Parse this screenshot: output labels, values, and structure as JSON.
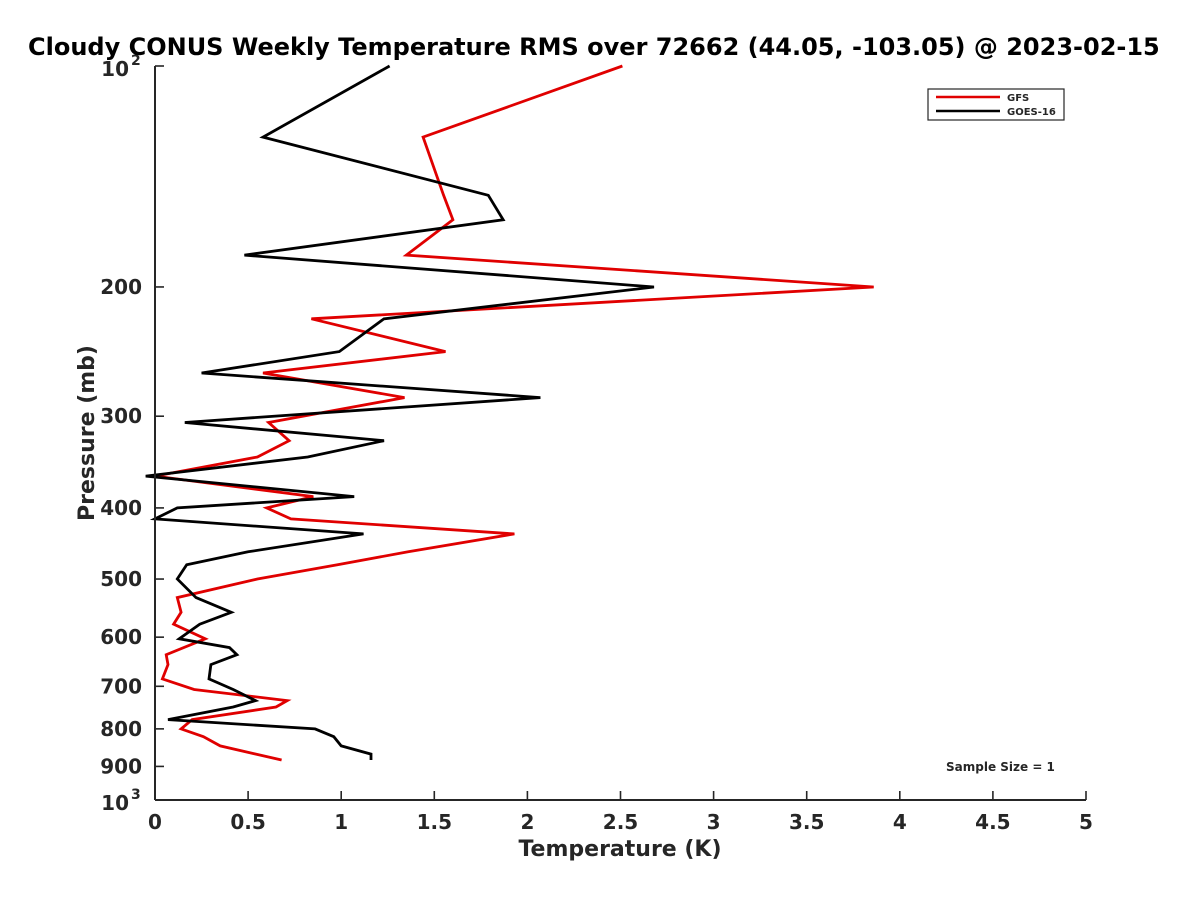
{
  "chart_data": {
    "type": "line",
    "title": "Cloudy CONUS Weekly Temperature RMS over 72662 (44.05, -103.05) @ 2023-02-15",
    "xlabel": "Temperature (K)",
    "ylabel": "Pressure (mb)",
    "xlim": [
      0,
      5
    ],
    "ylim": [
      100,
      1000
    ],
    "yscale": "log",
    "y_reversed": true,
    "xticks": [
      "0",
      "0.5",
      "1",
      "1.5",
      "2",
      "2.5",
      "3",
      "3.5",
      "4",
      "4.5",
      "5"
    ],
    "yticks": [
      {
        "value": 100,
        "base": "10",
        "exp": "2"
      },
      {
        "value": 200,
        "label": "200"
      },
      {
        "value": 300,
        "label": "300"
      },
      {
        "value": 400,
        "label": "400"
      },
      {
        "value": 500,
        "label": "500"
      },
      {
        "value": 600,
        "label": "600"
      },
      {
        "value": 700,
        "label": "700"
      },
      {
        "value": 800,
        "label": "800"
      },
      {
        "value": 900,
        "label": "900"
      },
      {
        "value": 1000,
        "base": "10",
        "exp": "3"
      }
    ],
    "legend_position": "top-right",
    "annotation": "Sample Size = 1",
    "series": [
      {
        "name": "GFS",
        "color": "#e00000",
        "points": [
          [
            2.51,
            100
          ],
          [
            1.44,
            125
          ],
          [
            1.55,
            150
          ],
          [
            1.6,
            162
          ],
          [
            1.35,
            181
          ],
          [
            3.86,
            200
          ],
          [
            0.84,
            221
          ],
          [
            1.56,
            245
          ],
          [
            0.58,
            262
          ],
          [
            1.34,
            283
          ],
          [
            0.61,
            306
          ],
          [
            0.72,
            324
          ],
          [
            0.55,
            341
          ],
          [
            0.0,
            362
          ],
          [
            0.85,
            386
          ],
          [
            0.6,
            400
          ],
          [
            0.73,
            414
          ],
          [
            1.93,
            434
          ],
          [
            1.36,
            459
          ],
          [
            0.98,
            478
          ],
          [
            0.55,
            500
          ],
          [
            0.12,
            530
          ],
          [
            0.14,
            555
          ],
          [
            0.1,
            576
          ],
          [
            0.27,
            603
          ],
          [
            0.06,
            634
          ],
          [
            0.07,
            654
          ],
          [
            0.04,
            684
          ],
          [
            0.21,
            707
          ],
          [
            0.71,
            732
          ],
          [
            0.65,
            747
          ],
          [
            0.2,
            777
          ],
          [
            0.14,
            800
          ],
          [
            0.26,
            820
          ],
          [
            0.35,
            844
          ],
          [
            0.68,
            882
          ]
        ]
      },
      {
        "name": "GOES-16",
        "color": "#000000",
        "points": [
          [
            1.26,
            100
          ],
          [
            0.58,
            125
          ],
          [
            1.79,
            150
          ],
          [
            1.87,
            162
          ],
          [
            0.48,
            181
          ],
          [
            2.68,
            200
          ],
          [
            1.23,
            221
          ],
          [
            0.99,
            245
          ],
          [
            0.25,
            262
          ],
          [
            2.07,
            283
          ],
          [
            0.16,
            306
          ],
          [
            1.23,
            324
          ],
          [
            0.82,
            341
          ],
          [
            -0.05,
            362
          ],
          [
            1.07,
            386
          ],
          [
            0.12,
            400
          ],
          [
            0.0,
            414
          ],
          [
            1.12,
            434
          ],
          [
            0.5,
            459
          ],
          [
            0.17,
            478
          ],
          [
            0.12,
            500
          ],
          [
            0.22,
            530
          ],
          [
            0.41,
            555
          ],
          [
            0.24,
            576
          ],
          [
            0.13,
            603
          ],
          [
            0.4,
            620
          ],
          [
            0.44,
            634
          ],
          [
            0.3,
            654
          ],
          [
            0.29,
            684
          ],
          [
            0.42,
            707
          ],
          [
            0.54,
            732
          ],
          [
            0.42,
            747
          ],
          [
            0.07,
            777
          ],
          [
            0.86,
            800
          ],
          [
            0.96,
            820
          ],
          [
            1.0,
            844
          ],
          [
            1.16,
            866
          ],
          [
            1.16,
            882
          ]
        ]
      }
    ]
  }
}
